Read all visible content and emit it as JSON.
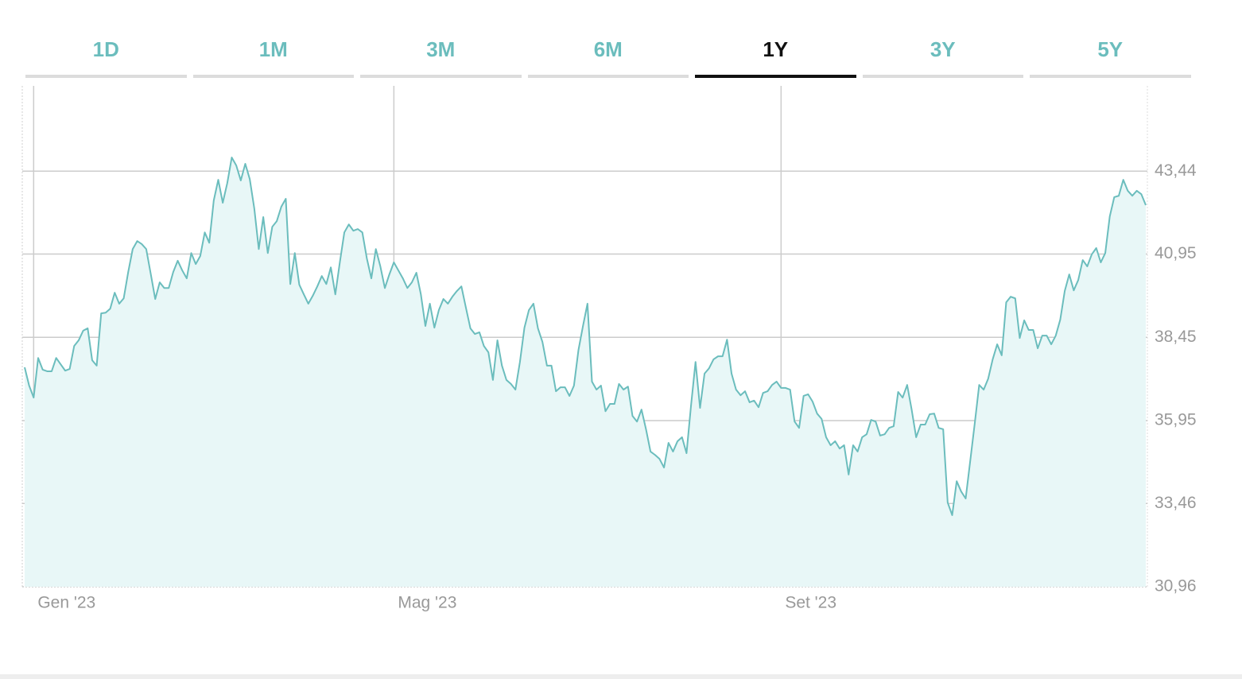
{
  "tabs": {
    "items": [
      "1D",
      "1M",
      "3M",
      "6M",
      "1Y",
      "3Y",
      "5Y"
    ],
    "selected": 4
  },
  "chart_data": {
    "type": "line",
    "categories": [
      null,
      null,
      "Gen '23",
      null,
      null,
      null,
      null,
      null,
      null,
      null,
      null,
      null,
      null,
      null,
      null,
      null,
      null,
      null,
      null,
      null,
      null,
      null,
      null,
      null,
      null,
      null,
      null,
      null,
      null,
      null,
      null,
      null,
      null,
      null,
      null,
      null,
      null,
      null,
      null,
      null,
      null,
      null,
      null,
      null,
      null,
      null,
      null,
      null,
      null,
      null,
      null,
      null,
      null,
      null,
      null,
      null,
      null,
      null,
      null,
      null,
      null,
      null,
      null,
      null,
      null,
      null,
      null,
      null,
      null,
      null,
      null,
      null,
      null,
      null,
      null,
      null,
      null,
      null,
      null,
      null,
      null,
      null,
      "Mag '23",
      null,
      null,
      null,
      null,
      null,
      null,
      null,
      null,
      null,
      null,
      null,
      null,
      null,
      null,
      null,
      null,
      null,
      null,
      null,
      null,
      null,
      null,
      null,
      null,
      null,
      null,
      null,
      null,
      null,
      null,
      null,
      null,
      null,
      null,
      null,
      null,
      null,
      null,
      null,
      null,
      null,
      null,
      null,
      null,
      null,
      null,
      null,
      null,
      null,
      null,
      null,
      null,
      null,
      null,
      null,
      null,
      null,
      null,
      null,
      null,
      null,
      null,
      null,
      null,
      null,
      null,
      null,
      null,
      null,
      null,
      null,
      null,
      null,
      null,
      null,
      null,
      null,
      null,
      null,
      null,
      null,
      null,
      null,
      null,
      null,
      "Set '23",
      null,
      null,
      null,
      null,
      null,
      null,
      null,
      null,
      null,
      null,
      null,
      null,
      null,
      null,
      null,
      null,
      null,
      null,
      null,
      null,
      null,
      null,
      null,
      null,
      null,
      null,
      null,
      null,
      null,
      null,
      null,
      null,
      null,
      null,
      null,
      null,
      null,
      null,
      null,
      null,
      null,
      null,
      null,
      null,
      null,
      null,
      null,
      null,
      null,
      null,
      null,
      null,
      null,
      null,
      null,
      null,
      null,
      null,
      null,
      null,
      null,
      null,
      null,
      null,
      null,
      null,
      null,
      null,
      null,
      null,
      null,
      null,
      null,
      null,
      null,
      null,
      null,
      null,
      null,
      null,
      null
    ],
    "series": [
      {
        "color": "#6bbdbd",
        "fill": "#e8f7f7",
        "values": [
          37.55,
          37.0,
          36.64,
          37.83,
          37.48,
          37.43,
          37.43,
          37.83,
          37.64,
          37.45,
          37.5,
          38.19,
          38.36,
          38.65,
          38.72,
          37.76,
          37.6,
          39.17,
          39.19,
          39.31,
          39.79,
          39.46,
          39.62,
          40.41,
          41.1,
          41.34,
          41.25,
          41.1,
          40.36,
          39.6,
          40.1,
          39.93,
          39.93,
          40.41,
          40.75,
          40.46,
          40.22,
          40.98,
          40.65,
          40.89,
          41.6,
          41.29,
          42.56,
          43.18,
          42.49,
          43.08,
          43.85,
          43.61,
          43.16,
          43.66,
          43.2,
          42.32,
          41.1,
          42.06,
          40.98,
          41.77,
          41.94,
          42.37,
          42.61,
          40.05,
          40.98,
          40.03,
          39.74,
          39.46,
          39.7,
          39.98,
          40.29,
          40.05,
          40.55,
          39.74,
          40.7,
          41.6,
          41.84,
          41.65,
          41.7,
          41.6,
          40.82,
          40.22,
          41.1,
          40.58,
          39.93,
          40.34,
          40.7,
          40.46,
          40.22,
          39.93,
          40.1,
          40.39,
          39.74,
          38.79,
          39.46,
          38.74,
          39.27,
          39.6,
          39.46,
          39.67,
          39.84,
          39.98,
          39.34,
          38.72,
          38.55,
          38.6,
          38.19,
          38.0,
          37.17,
          38.36,
          37.6,
          37.17,
          37.05,
          36.88,
          37.71,
          38.74,
          39.27,
          39.46,
          38.72,
          38.31,
          37.6,
          37.6,
          36.83,
          36.95,
          36.95,
          36.69,
          37.0,
          38.07,
          38.79,
          39.46,
          37.12,
          36.88,
          37.0,
          36.23,
          36.45,
          36.45,
          37.05,
          36.88,
          36.97,
          36.09,
          35.92,
          36.28,
          35.69,
          35.02,
          34.92,
          34.8,
          34.54,
          35.28,
          35.02,
          35.33,
          35.45,
          34.97,
          36.4,
          37.71,
          36.33,
          37.36,
          37.52,
          37.79,
          37.88,
          37.88,
          38.38,
          37.36,
          36.88,
          36.71,
          36.83,
          36.5,
          36.55,
          36.35,
          36.78,
          36.83,
          37.02,
          37.12,
          36.93,
          36.93,
          36.88,
          35.92,
          35.73,
          36.69,
          36.74,
          36.52,
          36.16,
          36.0,
          35.45,
          35.21,
          35.33,
          35.11,
          35.21,
          34.33,
          35.21,
          35.02,
          35.45,
          35.54,
          35.97,
          35.92,
          35.5,
          35.54,
          35.73,
          35.78,
          36.81,
          36.64,
          37.02,
          36.28,
          35.45,
          35.83,
          35.83,
          36.14,
          36.16,
          35.73,
          35.69,
          33.49,
          33.11,
          34.13,
          33.82,
          33.61,
          34.73,
          35.85,
          37.02,
          36.88,
          37.21,
          37.79,
          38.24,
          37.91,
          39.5,
          39.67,
          39.62,
          38.43,
          38.96,
          38.67,
          38.67,
          38.12,
          38.5,
          38.5,
          38.24,
          38.5,
          38.98,
          39.84,
          40.34,
          39.86,
          40.17,
          40.77,
          40.58,
          40.94,
          41.13,
          40.7,
          40.98,
          42.08,
          42.66,
          42.7,
          43.18,
          42.85,
          42.7,
          42.85,
          42.75,
          42.42
        ]
      }
    ],
    "ylim": [
      30.96,
      46.0
    ],
    "yticks": [
      {
        "value": 30.96,
        "label": "30,96"
      },
      {
        "value": 33.46,
        "label": "33,46"
      },
      {
        "value": 35.95,
        "label": "35,95"
      },
      {
        "value": 38.45,
        "label": "38,45"
      },
      {
        "value": 40.95,
        "label": "40,95"
      },
      {
        "value": 43.44,
        "label": "43,44"
      }
    ],
    "grid": true,
    "y_axis_side": "right"
  }
}
